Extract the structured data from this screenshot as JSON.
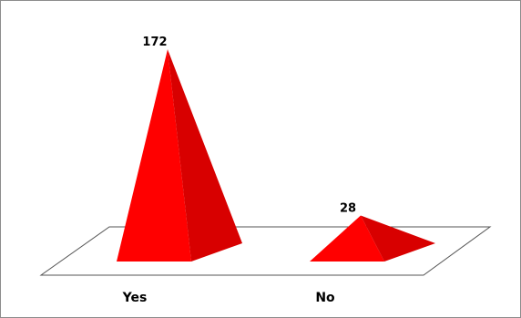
{
  "chart_data": {
    "type": "bar",
    "style": "3d-pyramid",
    "categories": [
      "Yes",
      "No"
    ],
    "values": [
      172,
      28
    ],
    "data_labels": [
      "172",
      "28"
    ],
    "title": "",
    "xlabel": "",
    "ylabel": "",
    "ylim": [
      0,
      180
    ],
    "grid": false,
    "legend": "none",
    "colors": {
      "front": "#ff0000",
      "side": "#d80000",
      "floor_fill": "#ffffff",
      "floor_stroke": "#555555",
      "frame": "#8c8c8c"
    }
  }
}
